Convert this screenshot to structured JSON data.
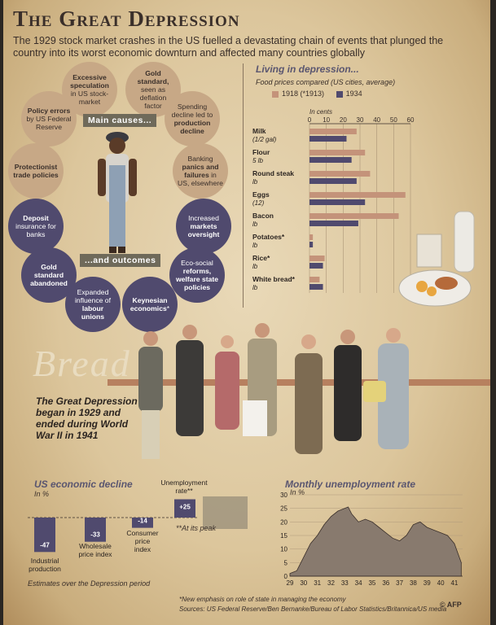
{
  "header": {
    "title": "The Great Depression",
    "subtitle": "The 1929 stock market crashes in the US fuelled a devastating chain of events that plunged the country into its worst economic downturn and affected many countries globally"
  },
  "causes": {
    "label": "Main causes...",
    "items": [
      {
        "bold": "Excessive speculation",
        "text": " in US stock-market"
      },
      {
        "bold": "Gold standard,",
        "text": " seen as deflation factor"
      },
      {
        "bold": "Policy errors",
        "text": " by US Federal Reserve"
      },
      {
        "pre": "Spending decline led to ",
        "bold": "production decline",
        "text": ""
      },
      {
        "bold": "Protectionist trade policies",
        "text": ""
      },
      {
        "pre": "Banking ",
        "bold": "panics and failures",
        "text": " in US, elsewhere"
      }
    ]
  },
  "outcomes": {
    "label": "...and outcomes",
    "items": [
      {
        "bold": "Deposit",
        "text": " insurance for banks"
      },
      {
        "pre": "Increased ",
        "bold": "markets oversight",
        "text": ""
      },
      {
        "bold": "Gold standard abandoned",
        "text": ""
      },
      {
        "pre": "Eco-social ",
        "bold": "reforms, welfare state policies",
        "text": ""
      },
      {
        "pre": "Expanded influence of ",
        "bold": "labour unions",
        "text": ""
      },
      {
        "bold": "Keynesian economics",
        "text": "*"
      }
    ]
  },
  "food": {
    "heading": "Living in depression...",
    "subheading": "Food prices compared (US cities, average)",
    "legend_1918": "1918 (*1913)",
    "legend_1934": "1934",
    "unit": "In cents"
  },
  "bread_sign": "Bread",
  "great_depression_text": "The Great Depression began in 1929 and ended during World War II in 1941",
  "decline": {
    "heading": "US economic decline",
    "unit": "In %",
    "unemp_label": "Unemployment rate**",
    "peak_note": "**At its peak",
    "estimates_note": "Estimates over the Depression period"
  },
  "monthly": {
    "heading": "Monthly unemployment rate",
    "unit": "In %"
  },
  "footer": {
    "note": "*New emphasis on role of state in managing the economy",
    "sources": "Sources: US Federal Reserve/Ben Bernanke/Bureau of Labor Statistics/Britannica/US media",
    "credit": "© AFP"
  },
  "colors": {
    "bar_1918": "#c4937a",
    "bar_1934": "#504a6e",
    "area": "#887a6e",
    "neg_bar": "#504a6e"
  },
  "chart_data": [
    {
      "type": "bar",
      "orientation": "horizontal",
      "title": "Living in depression...",
      "subtitle": "Food prices compared (US cities, average)",
      "xlabel": "In cents",
      "xlim": [
        0,
        60
      ],
      "xticks": [
        "0",
        "10",
        "20",
        "30",
        "40",
        "50",
        "60"
      ],
      "categories": [
        {
          "name": "Milk",
          "unit": "(1/2 gal)"
        },
        {
          "name": "Flour",
          "unit": "5 lb"
        },
        {
          "name": "Round steak",
          "unit": "lb"
        },
        {
          "name": "Eggs",
          "unit": "(12)"
        },
        {
          "name": "Bacon",
          "unit": "lb"
        },
        {
          "name": "Potatoes*",
          "unit": "lb"
        },
        {
          "name": "Rice*",
          "unit": "lb"
        },
        {
          "name": "White bread*",
          "unit": "lb"
        }
      ],
      "series": [
        {
          "name": "1918 (*1913)",
          "values": [
            28,
            33,
            36,
            57,
            53,
            2,
            9,
            6
          ]
        },
        {
          "name": "1934",
          "values": [
            22,
            25,
            28,
            33,
            29,
            2,
            8,
            8
          ]
        }
      ]
    },
    {
      "type": "bar",
      "title": "US economic decline",
      "ylabel": "In %",
      "categories": [
        "Industrial production",
        "Wholesale price index",
        "Consumer price index",
        "Unemployment rate**"
      ],
      "values": [
        -47,
        -33,
        -14,
        25
      ],
      "value_labels": [
        "-47",
        "-33",
        "-14",
        "+25"
      ]
    },
    {
      "type": "area",
      "title": "Monthly unemployment rate",
      "ylabel": "In %",
      "ylim": [
        0,
        30
      ],
      "yticks": [
        "0",
        "5",
        "10",
        "15",
        "20",
        "25",
        "30"
      ],
      "xticks": [
        "29",
        "30",
        "31",
        "32",
        "33",
        "34",
        "35",
        "36",
        "37",
        "38",
        "39",
        "40",
        "41"
      ],
      "x": [
        29,
        29.5,
        30,
        30.5,
        31,
        31.5,
        32,
        32.5,
        33,
        33.25,
        33.5,
        34,
        34.5,
        35,
        35.5,
        36,
        36.5,
        37,
        37.5,
        38,
        38.5,
        39,
        39.5,
        40,
        40.5,
        41,
        41.5
      ],
      "y": [
        1,
        2,
        7,
        12,
        15,
        19,
        22,
        24,
        25,
        25.5,
        23,
        20,
        21,
        20,
        18,
        16,
        14,
        13,
        15,
        19,
        20,
        18,
        17,
        16,
        15,
        12,
        5
      ]
    }
  ]
}
